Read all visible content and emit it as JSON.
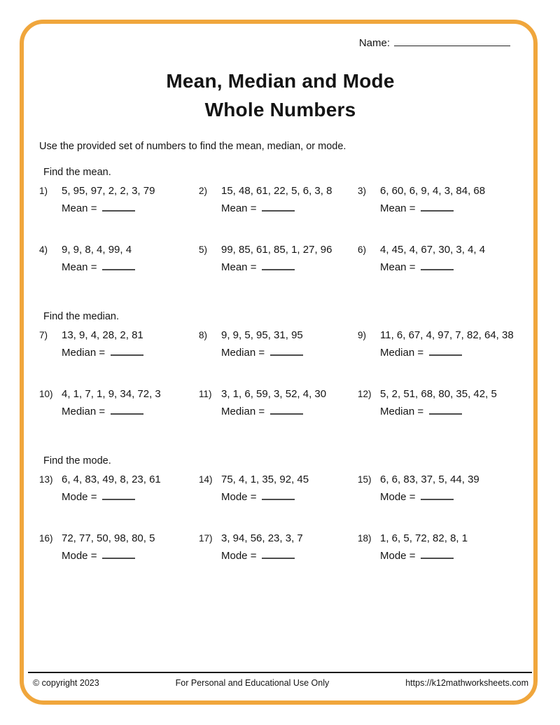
{
  "page": {
    "name_label": "Name:",
    "title_line1": "Mean, Median and Mode",
    "title_line2": "Whole Numbers",
    "instructions": "Use the provided set of numbers to find the mean, median, or mode.",
    "border_color": "#F0A63C"
  },
  "sections": [
    {
      "heading": "Find the mean.",
      "answer_label": "Mean =",
      "problems": [
        {
          "num": "1)",
          "values": "5, 95, 97, 2, 2, 3, 79"
        },
        {
          "num": "2)",
          "values": "15, 48, 61, 22, 5, 6, 3, 8"
        },
        {
          "num": "3)",
          "values": "6, 60, 6, 9, 4, 3, 84, 68"
        },
        {
          "num": "4)",
          "values": "9, 9, 8, 4, 99, 4"
        },
        {
          "num": "5)",
          "values": "99, 85, 61, 85, 1, 27, 96"
        },
        {
          "num": "6)",
          "values": "4, 45, 4, 67, 30, 3, 4, 4"
        }
      ]
    },
    {
      "heading": "Find the median.",
      "answer_label": "Median =",
      "problems": [
        {
          "num": "7)",
          "values": "13, 9, 4, 28, 2, 81"
        },
        {
          "num": "8)",
          "values": "9, 9, 5, 95, 31, 95"
        },
        {
          "num": "9)",
          "values": "11, 6, 67, 4, 97, 7, 82, 64, 38"
        },
        {
          "num": "10)",
          "values": "4, 1, 7, 1, 9, 34, 72, 3"
        },
        {
          "num": "11)",
          "values": "3, 1, 6, 59, 3, 52, 4, 30"
        },
        {
          "num": "12)",
          "values": "5, 2, 51, 68, 80, 35, 42, 5"
        }
      ]
    },
    {
      "heading": "Find the mode.",
      "answer_label": "Mode =",
      "problems": [
        {
          "num": "13)",
          "values": "6, 4, 83, 49, 8, 23, 61"
        },
        {
          "num": "14)",
          "values": "75, 4, 1, 35, 92, 45"
        },
        {
          "num": "15)",
          "values": "6, 6, 83, 37, 5, 44, 39"
        },
        {
          "num": "16)",
          "values": "72, 77, 50, 98, 80, 5"
        },
        {
          "num": "17)",
          "values": "3, 94, 56, 23, 3, 7"
        },
        {
          "num": "18)",
          "values": "1, 6, 5, 72, 82, 8, 1"
        }
      ]
    }
  ],
  "footer": {
    "copyright": "© copyright 2023",
    "usage": "For Personal and Educational Use Only",
    "url": "https://k12mathworksheets.com"
  }
}
